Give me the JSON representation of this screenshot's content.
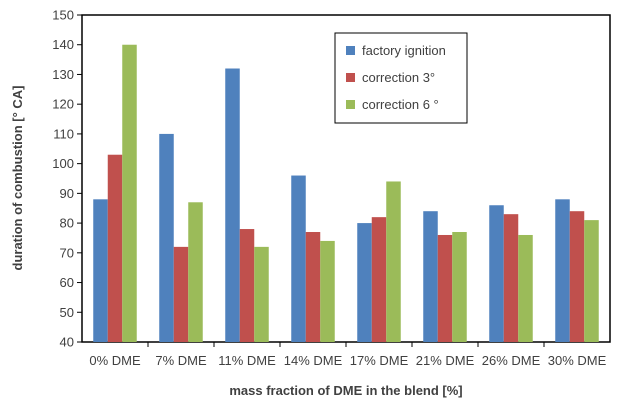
{
  "chart_data": {
    "type": "bar",
    "title": "",
    "xlabel": "mass fraction of DME in the blend [%]",
    "ylabel": "duration of combustion  [° CA]",
    "ylim": [
      40,
      150
    ],
    "yticks": [
      40,
      50,
      60,
      70,
      80,
      90,
      100,
      110,
      120,
      130,
      140,
      150
    ],
    "grid": false,
    "legend_position": "top-right",
    "categories": [
      "0% DME",
      "7% DME",
      "11% DME",
      "14% DME",
      "17% DME",
      "21% DME",
      "26% DME",
      "30% DME"
    ],
    "series": [
      {
        "name": "factory ignition",
        "color": "#4F81BD",
        "values": [
          88,
          110,
          132,
          96,
          80,
          84,
          86,
          88
        ]
      },
      {
        "name": "correction 3°",
        "color": "#C0504D",
        "values": [
          103,
          72,
          78,
          77,
          82,
          76,
          83,
          84
        ]
      },
      {
        "name": "correction 6 °",
        "color": "#9BBB59",
        "values": [
          140,
          87,
          72,
          74,
          94,
          77,
          76,
          81
        ]
      }
    ]
  }
}
